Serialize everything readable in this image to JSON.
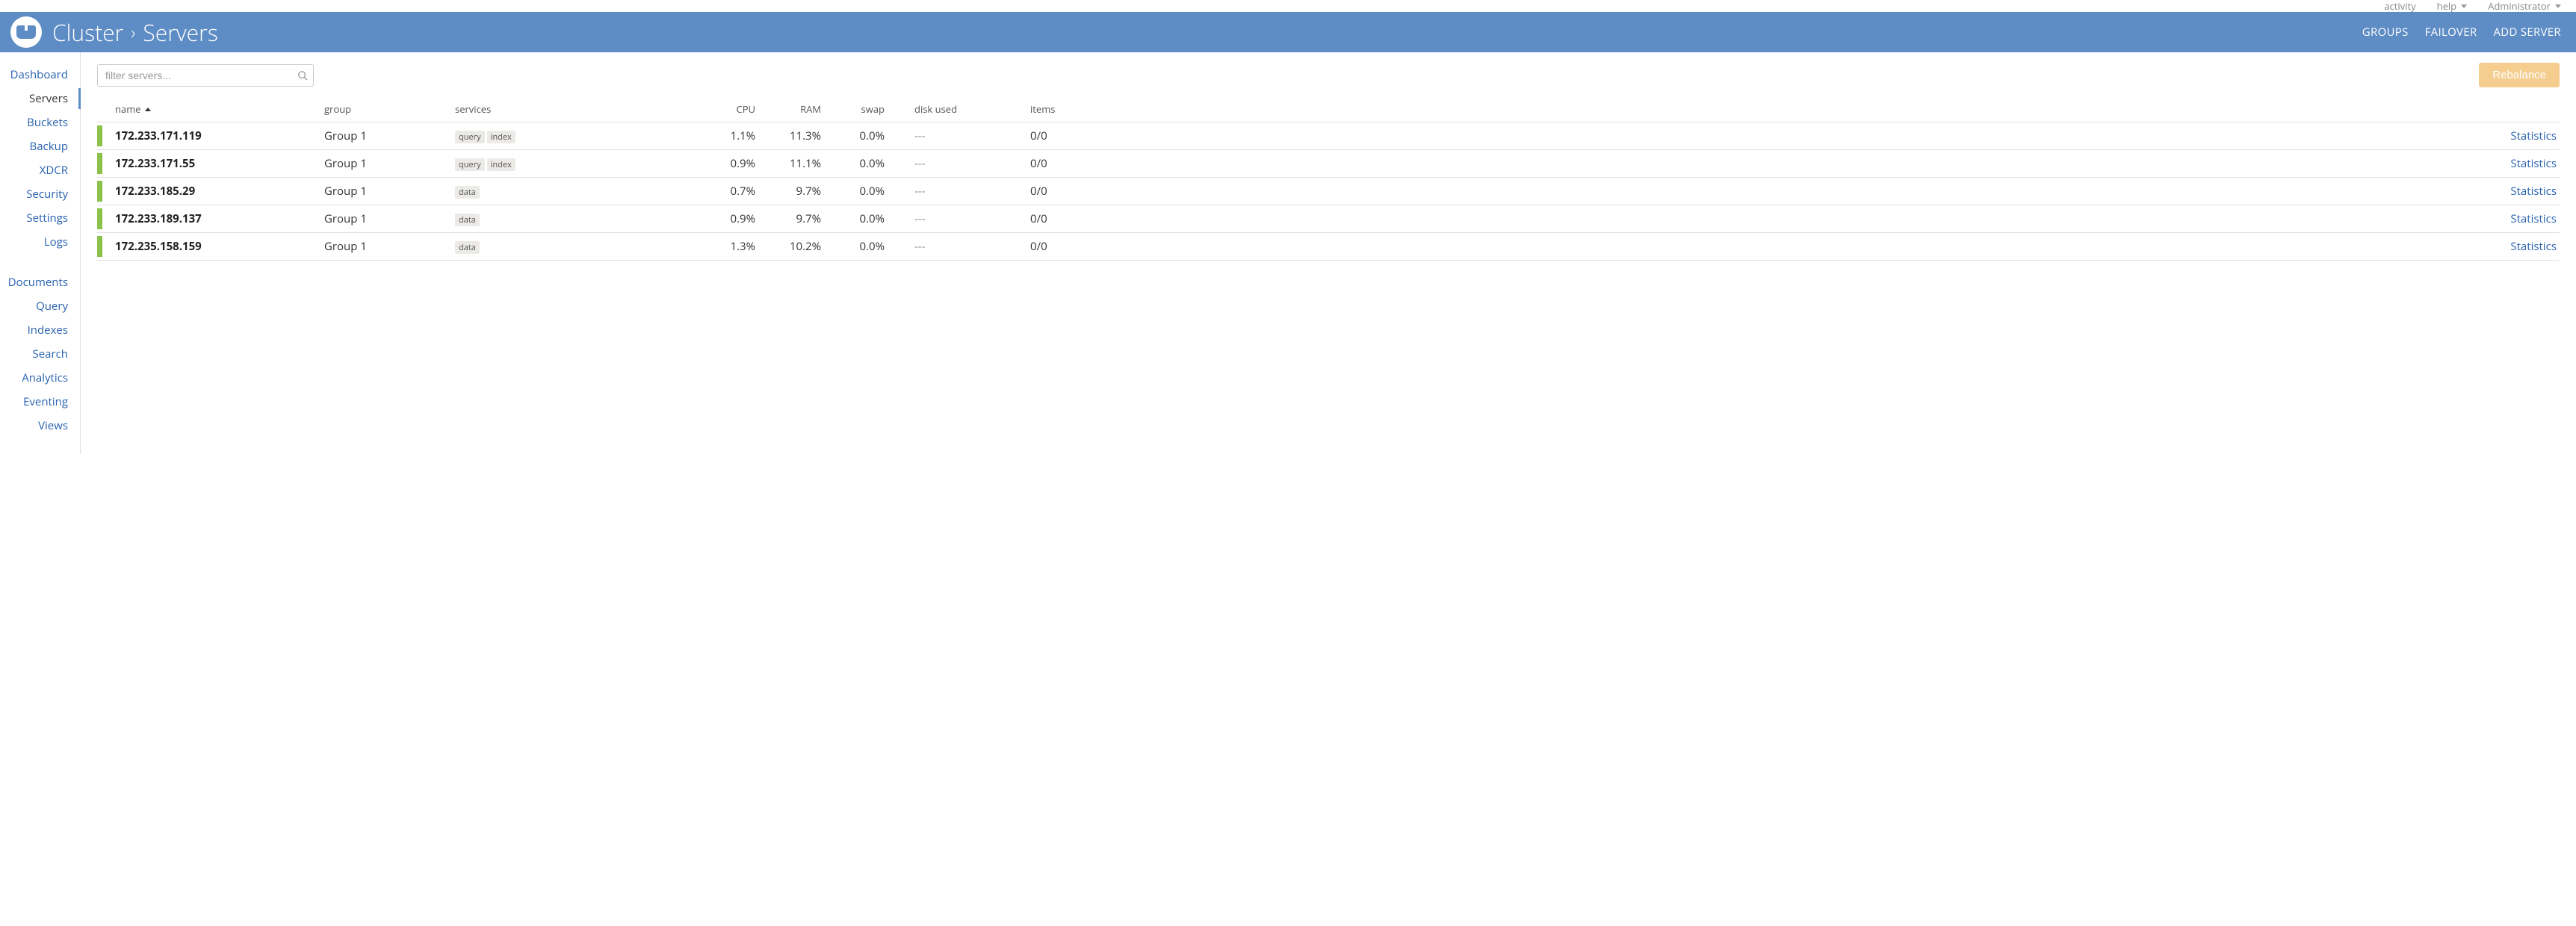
{
  "top_bar": {
    "activity": "activity",
    "help": "help",
    "user": "Administrator"
  },
  "header": {
    "breadcrumb_root": "Cluster",
    "breadcrumb_current": "Servers",
    "actions": {
      "groups": "GROUPS",
      "failover": "FAILOVER",
      "add_server": "ADD SERVER"
    }
  },
  "sidebar": {
    "group1": [
      {
        "label": "Dashboard",
        "active": false
      },
      {
        "label": "Servers",
        "active": true
      },
      {
        "label": "Buckets",
        "active": false
      },
      {
        "label": "Backup",
        "active": false
      },
      {
        "label": "XDCR",
        "active": false
      },
      {
        "label": "Security",
        "active": false
      },
      {
        "label": "Settings",
        "active": false
      },
      {
        "label": "Logs",
        "active": false
      }
    ],
    "group2": [
      {
        "label": "Documents"
      },
      {
        "label": "Query"
      },
      {
        "label": "Indexes"
      },
      {
        "label": "Search"
      },
      {
        "label": "Analytics"
      },
      {
        "label": "Eventing"
      },
      {
        "label": "Views"
      }
    ]
  },
  "toolbar": {
    "search_placeholder": "filter servers...",
    "rebalance": "Rebalance"
  },
  "table": {
    "columns": {
      "name": "name",
      "group": "group",
      "services": "services",
      "cpu": "CPU",
      "ram": "RAM",
      "swap": "swap",
      "disk": "disk used",
      "items": "items"
    },
    "stats_link": "Statistics",
    "rows": [
      {
        "name": "172.233.171.119",
        "group": "Group 1",
        "services": [
          "query",
          "index"
        ],
        "cpu": "1.1%",
        "ram": "11.3%",
        "swap": "0.0%",
        "disk": "---",
        "items": "0/0"
      },
      {
        "name": "172.233.171.55",
        "group": "Group 1",
        "services": [
          "query",
          "index"
        ],
        "cpu": "0.9%",
        "ram": "11.1%",
        "swap": "0.0%",
        "disk": "---",
        "items": "0/0"
      },
      {
        "name": "172.233.185.29",
        "group": "Group 1",
        "services": [
          "data"
        ],
        "cpu": "0.7%",
        "ram": "9.7%",
        "swap": "0.0%",
        "disk": "---",
        "items": "0/0"
      },
      {
        "name": "172.233.189.137",
        "group": "Group 1",
        "services": [
          "data"
        ],
        "cpu": "0.9%",
        "ram": "9.7%",
        "swap": "0.0%",
        "disk": "---",
        "items": "0/0"
      },
      {
        "name": "172.235.158.159",
        "group": "Group 1",
        "services": [
          "data"
        ],
        "cpu": "1.3%",
        "ram": "10.2%",
        "swap": "0.0%",
        "disk": "---",
        "items": "0/0"
      }
    ]
  },
  "colors": {
    "header_bg": "#5e8cc5",
    "link": "#2963b0",
    "status_ok": "#8bc34a",
    "rebalance_bg": "#f4cd8f"
  }
}
